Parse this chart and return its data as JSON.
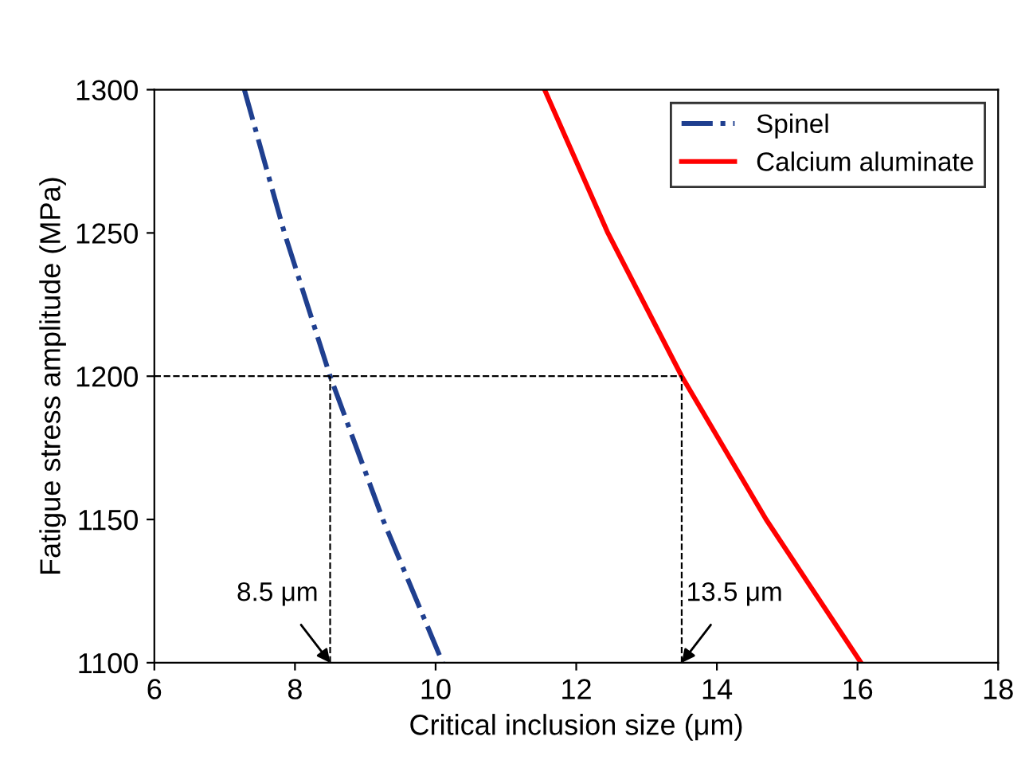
{
  "chart_data": {
    "type": "line",
    "xlabel": "Critical inclusion size (μm)",
    "ylabel": "Fatigue stress amplitude (MPa)",
    "xlim": [
      6,
      18
    ],
    "xticks": [
      6,
      8,
      10,
      12,
      14,
      16,
      18
    ],
    "ylim": [
      1100,
      1300
    ],
    "yticks": [
      1100,
      1150,
      1200,
      1250,
      1300
    ],
    "grid": false,
    "legend": "top right",
    "marker": "none",
    "series": [
      {
        "name": "Spinel",
        "color": "#1f3f8f",
        "line_style": "dashdot",
        "x": [
          7.28,
          7.85,
          8.5,
          9.25,
          10.1
        ],
        "values": [
          1300,
          1250,
          1200,
          1150,
          1100
        ]
      },
      {
        "name": "Calcium aluminate",
        "color": "#ff0000",
        "line_style": "solid",
        "x": [
          11.55,
          12.45,
          13.5,
          14.7,
          16.05
        ],
        "values": [
          1300,
          1250,
          1200,
          1150,
          1100
        ]
      }
    ],
    "ref_lines": [
      {
        "axis": "y",
        "value": 1200,
        "color": "#000000",
        "line_style": "dashed"
      },
      {
        "axis": "x",
        "value": 8.5,
        "color": "#000000",
        "line_style": "dashed"
      },
      {
        "axis": "x",
        "value": 13.5,
        "color": "#000000",
        "line_style": "dashed"
      }
    ],
    "annotations": [
      {
        "text": "8.5 μm",
        "x": 8.5,
        "y": 1100
      },
      {
        "text": "13.5 μm",
        "x": 13.5,
        "y": 1100
      }
    ]
  }
}
